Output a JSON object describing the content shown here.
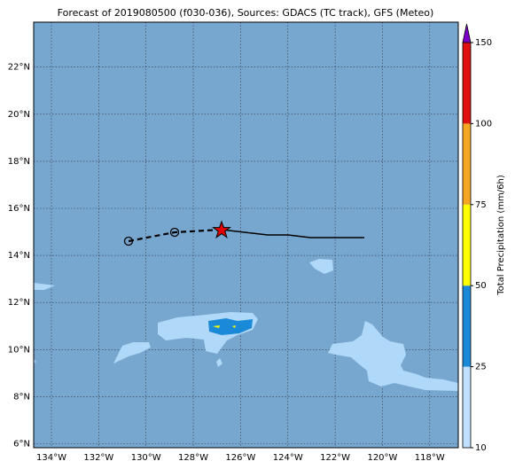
{
  "title": "Forecast of 2019080500 (f030-036), Sources: GDACS (TC track), GFS (Meteo)",
  "map": {
    "lat_labels": [
      "6°N",
      "8°N",
      "10°N",
      "12°N",
      "14°N",
      "16°N",
      "18°N",
      "20°N",
      "22°N"
    ],
    "lon_labels": [
      "134°W",
      "132°W",
      "130°W",
      "128°W",
      "126°W",
      "124°W",
      "122°W",
      "120°W",
      "118°W"
    ]
  },
  "colorbar": {
    "label": "Total Precipitation (mm/6h)",
    "ticks": [
      "10",
      "25",
      "50",
      "75",
      "100",
      "150"
    ]
  }
}
